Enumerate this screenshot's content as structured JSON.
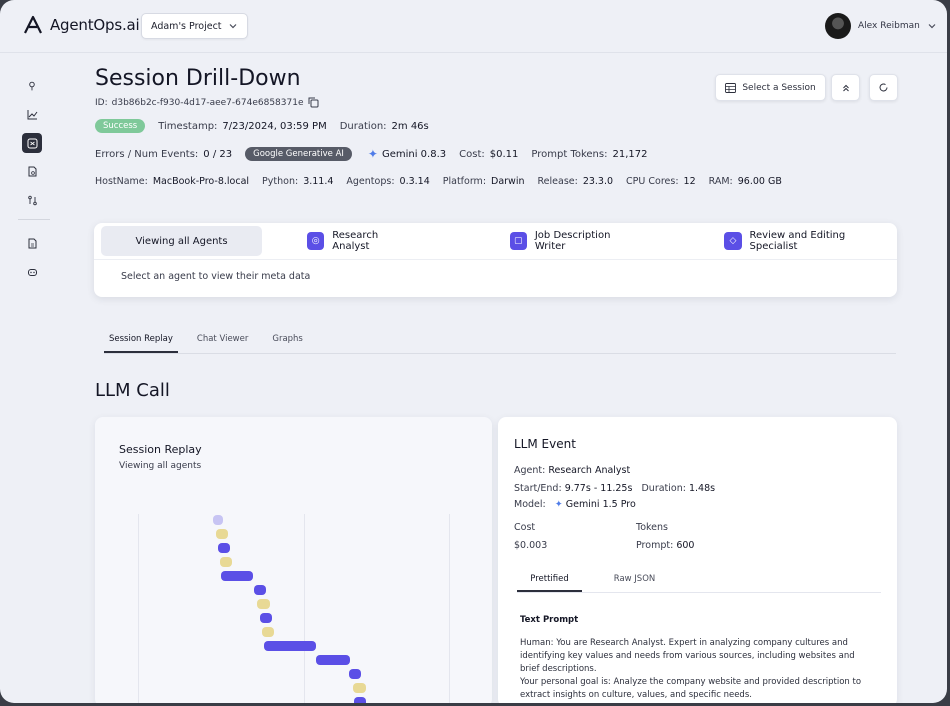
{
  "header": {
    "logo_text": "AgentOps.ai",
    "project_label": "Adam's Project",
    "user_name": "Alex Reibman"
  },
  "session": {
    "title": "Session Drill-Down",
    "id_label": "ID:",
    "id": "d3b86b2c-f930-4d17-aee7-674e6858371e",
    "status": "Success",
    "timestamp_label": "Timestamp:",
    "timestamp": "7/23/2024, 03:59 PM",
    "duration_label": "Duration:",
    "duration": "2m 46s",
    "errors_label": "Errors / Num Events:",
    "errors": "0 / 23",
    "provider": "Google Generative AI",
    "model": "Gemini 0.8.3",
    "cost_label": "Cost:",
    "cost": "$0.11",
    "prompt_tokens_label": "Prompt Tokens:",
    "prompt_tokens": "21,172",
    "host_label": "HostName:",
    "host": "MacBook-Pro-8.local",
    "python_label": "Python:",
    "python": "3.11.4",
    "agentops_label": "Agentops:",
    "agentops": "0.3.14",
    "platform_label": "Platform:",
    "platform": "Darwin",
    "release_label": "Release:",
    "release": "23.3.0",
    "cpu_label": "CPU Cores:",
    "cpu": "12",
    "ram_label": "RAM:",
    "ram": "96.00 GB"
  },
  "actions": {
    "select_session": "Select a Session"
  },
  "agents": {
    "all_label": "Viewing all Agents",
    "items": [
      "Research Analyst",
      "Job Description Writer",
      "Review and Editing Specialist"
    ],
    "hint": "Select an agent to view their meta data"
  },
  "tabs": [
    "Session Replay",
    "Chat Viewer",
    "Graphs"
  ],
  "section_title": "LLM Call",
  "replay": {
    "title": "Session Replay",
    "subtitle": "Viewing all agents",
    "colors": {
      "llm": "#5b4fe6",
      "tool": "#e8d995",
      "selected": "#c7c4f3"
    }
  },
  "llm_event": {
    "title": "LLM Event",
    "agent_label": "Agent:",
    "agent": "Research Analyst",
    "startend_label": "Start/End:",
    "startend": "9.77s - 11.25s",
    "duration_label": "Duration:",
    "duration": "1.48s",
    "model_label": "Model:",
    "model": "Gemini 1.5 Pro",
    "cost_label": "Cost",
    "cost": "$0.003",
    "tokens_label": "Tokens",
    "prompt_label": "Prompt:",
    "prompt": "600",
    "tabs": [
      "Prettified",
      "Raw JSON"
    ],
    "text_prompt_title": "Text Prompt",
    "text_prompt": "Human: You are Research Analyst. Expert in analyzing company cultures and identifying key values and needs from various sources, including websites and brief descriptions.\nYour personal goal is: Analyze the company website and provided description to extract insights on culture, values, and specific needs."
  }
}
